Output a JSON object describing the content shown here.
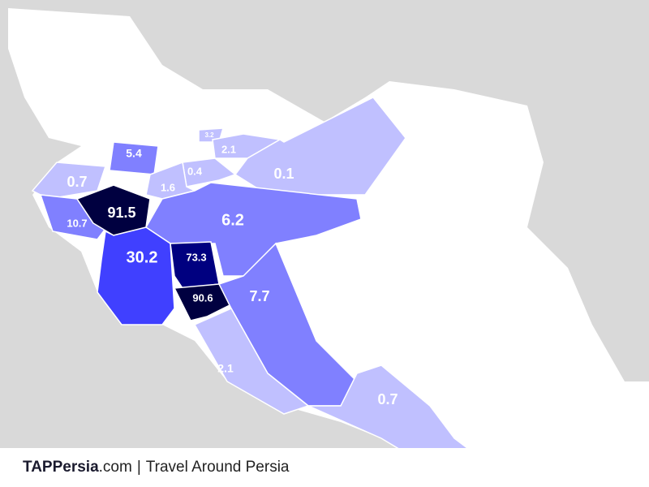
{
  "regions": [
    {
      "value": 0.7,
      "color": "#c0c0ff"
    },
    {
      "value": 5.4,
      "color": "#8080ff"
    },
    {
      "value": 3.2,
      "color": "#c0c0ff"
    },
    {
      "value": 2.1,
      "color": "#c0c0ff"
    },
    {
      "value": 0.4,
      "color": "#c0c0ff"
    },
    {
      "value": 0.1,
      "color": "#c0c0ff"
    },
    {
      "value": 1.6,
      "color": "#c0c0ff"
    },
    {
      "value": 10.7,
      "color": "#8080ff"
    },
    {
      "value": 91.5,
      "color": "#000040"
    },
    {
      "value": 6.2,
      "color": "#8080ff"
    },
    {
      "value": 30.2,
      "color": "#4040ff"
    },
    {
      "value": 73.3,
      "color": "#000080"
    },
    {
      "value": 90.6,
      "color": "#000040"
    },
    {
      "value": 7.7,
      "color": "#8080ff"
    },
    {
      "value": 2.1,
      "color": "#c0c0ff"
    },
    {
      "value": 0.7,
      "color": "#c0c0ff"
    }
  ],
  "footer": {
    "brand": "TAPPersia",
    "domain": ".com",
    "separator": "|",
    "tagline": "Travel Around Persia"
  }
}
